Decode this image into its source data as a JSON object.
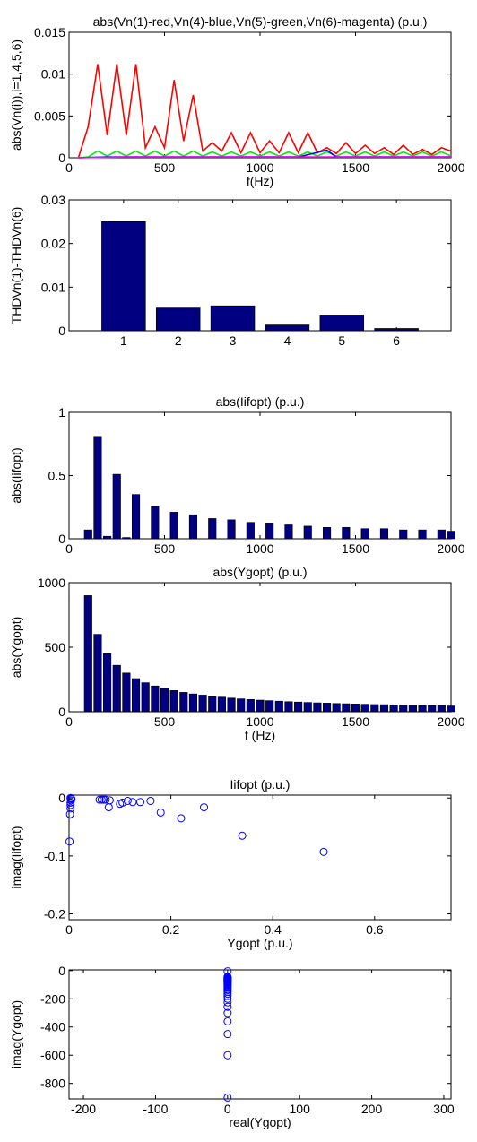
{
  "chart_data": [
    {
      "type": "line",
      "title": "abs(Vn(1)-red,Vn(4)-blue,Vn(5)-green,Vn(6)-magenta) (p.u.)",
      "xlabel": "f(Hz)",
      "ylabel": "abs(Vn(i)),i=1,4,5,6)",
      "xlim": [
        0,
        2000
      ],
      "ylim": [
        0,
        0.015
      ],
      "xticks": [
        0,
        500,
        1000,
        1500,
        2000
      ],
      "xtick_labels": [
        "0",
        "500",
        "1000",
        "1500",
        "2000"
      ],
      "yticks": [
        0,
        0.005,
        0.01,
        0.015
      ],
      "ytick_labels": [
        "0",
        "0.005",
        "0.01",
        "0.015"
      ],
      "grid": false,
      "series": [
        {
          "color": "#ff0000",
          "x": [
            50,
            100,
            150,
            200,
            250,
            300,
            350,
            400,
            450,
            500,
            550,
            600,
            650,
            700,
            750,
            800,
            850,
            900,
            950,
            1000,
            1050,
            1100,
            1150,
            1200,
            1250,
            1300,
            1350,
            1400,
            1450,
            1500,
            1550,
            1600,
            1650,
            1700,
            1750,
            1800,
            1850,
            1900,
            1950,
            2000
          ],
          "y": [
            0.0001,
            0.0037,
            0.0112,
            0.0027,
            0.0112,
            0.0027,
            0.0112,
            0.0012,
            0.0037,
            0.0012,
            0.0093,
            0.002,
            0.0075,
            0.0008,
            0.0018,
            0.0008,
            0.003,
            0.0006,
            0.003,
            0.0006,
            0.002,
            0.0006,
            0.003,
            0.0006,
            0.003,
            0.0006,
            0.0012,
            0.0005,
            0.0018,
            0.0005,
            0.0015,
            0.0005,
            0.0012,
            0.0004,
            0.0015,
            0.0004,
            0.001,
            0.0004,
            0.0012,
            0.0008
          ]
        },
        {
          "color": "#00ee00",
          "x": [
            50,
            100,
            150,
            200,
            250,
            300,
            350,
            400,
            450,
            500,
            550,
            600,
            650,
            700,
            750,
            800,
            850,
            900,
            950,
            1000,
            1050,
            1100,
            1150,
            1200,
            1250,
            1300,
            1350,
            1400,
            1450,
            1500,
            1550,
            1600,
            1650,
            1700,
            1750,
            1800,
            1850,
            1900,
            1950,
            2000
          ],
          "y": [
            0,
            0.0001,
            0.0008,
            0.0002,
            0.0008,
            0.0002,
            0.0008,
            0.0002,
            0.0008,
            0.0002,
            0.0008,
            0.0002,
            0.0008,
            0.0002,
            0.0007,
            0.0002,
            0.0007,
            0.0002,
            0.0007,
            0.0002,
            0.0007,
            0.0002,
            0.0007,
            0.0002,
            0.0007,
            0.0002,
            0.0007,
            0.0002,
            0.0007,
            0.0002,
            0.0007,
            0.0002,
            0.0007,
            0.0002,
            0.0007,
            0.0002,
            0.0007,
            0.0002,
            0.0007,
            0.0002
          ]
        },
        {
          "color": "#0000ff",
          "x": [
            50,
            200,
            400,
            600,
            800,
            1000,
            1200,
            1350,
            1400,
            1600,
            1800,
            2000
          ],
          "y": [
            0,
            0.0001,
            0.0001,
            0.0001,
            0.0001,
            0.0001,
            0.0001,
            0.0009,
            0.0001,
            0.0001,
            0.0001,
            0.0001
          ]
        },
        {
          "color": "#ff00ff",
          "x": [
            50,
            300,
            600,
            900,
            1200,
            1500,
            1800,
            2000
          ],
          "y": [
            0,
            0.0001,
            0.0001,
            0.0001,
            0.0001,
            0.0001,
            0.0001,
            0.0001
          ]
        }
      ]
    },
    {
      "type": "bar",
      "title": "",
      "xlabel": "",
      "ylabel": "THDVn(1)-THDVn(6)",
      "categories": [
        "1",
        "2",
        "3",
        "4",
        "5",
        "6"
      ],
      "values": [
        0.025,
        0.0052,
        0.0057,
        0.0013,
        0.0036,
        0.0005
      ],
      "xlim": [
        0,
        7
      ],
      "ylim": [
        0,
        0.03
      ],
      "yticks": [
        0,
        0.01,
        0.02,
        0.03
      ],
      "ytick_labels": [
        "0",
        "0.01",
        "0.02",
        "0.03"
      ],
      "color": "#000080",
      "grid": false
    },
    {
      "type": "bar",
      "title": "abs(Iifopt) (p.u.)",
      "xlabel": "",
      "ylabel": "abs(Iifopt)",
      "xlim": [
        0,
        2000
      ],
      "ylim": [
        0,
        1
      ],
      "xticks": [
        0,
        500,
        1000,
        1500,
        2000
      ],
      "xtick_labels": [
        "0",
        "500",
        "1000",
        "1500",
        "2000"
      ],
      "yticks": [
        0,
        0.5,
        1
      ],
      "ytick_labels": [
        "0",
        "0.5",
        "1"
      ],
      "color": "#000080",
      "x": [
        100,
        150,
        200,
        250,
        300,
        350,
        400,
        450,
        500,
        550,
        600,
        650,
        700,
        750,
        800,
        850,
        900,
        950,
        1000,
        1050,
        1100,
        1150,
        1200,
        1250,
        1300,
        1350,
        1400,
        1450,
        1500,
        1550,
        1600,
        1650,
        1700,
        1750,
        1800,
        1850,
        1900,
        1950,
        2000
      ],
      "values": [
        0.07,
        0.81,
        0.02,
        0.51,
        0.01,
        0.35,
        0,
        0.26,
        0,
        0.21,
        0,
        0.19,
        0,
        0.16,
        0,
        0.15,
        0,
        0.13,
        0,
        0.12,
        0,
        0.11,
        0,
        0.1,
        0,
        0.09,
        0,
        0.09,
        0,
        0.08,
        0,
        0.08,
        0,
        0.07,
        0,
        0.07,
        0,
        0.07,
        0.06
      ],
      "grid": false
    },
    {
      "type": "bar",
      "title": "abs(Ygopt) (p.u.)",
      "xlabel": "f (Hz)",
      "ylabel": "abs(Ygopt)",
      "xlim": [
        0,
        2000
      ],
      "ylim": [
        0,
        1000
      ],
      "xticks": [
        0,
        500,
        1000,
        1500,
        2000
      ],
      "xtick_labels": [
        "0",
        "500",
        "1000",
        "1500",
        "2000"
      ],
      "yticks": [
        0,
        500,
        1000
      ],
      "ytick_labels": [
        "0",
        "500",
        "1000"
      ],
      "color": "#000080",
      "x": [
        100,
        150,
        200,
        250,
        300,
        350,
        400,
        450,
        500,
        550,
        600,
        650,
        700,
        750,
        800,
        850,
        900,
        950,
        1000,
        1050,
        1100,
        1150,
        1200,
        1250,
        1300,
        1350,
        1400,
        1450,
        1500,
        1550,
        1600,
        1650,
        1700,
        1750,
        1800,
        1850,
        1900,
        1950,
        2000
      ],
      "values": [
        900,
        600,
        450,
        360,
        300,
        257,
        225,
        200,
        180,
        164,
        150,
        138,
        129,
        120,
        113,
        106,
        100,
        95,
        90,
        86,
        82,
        78,
        75,
        72,
        69,
        67,
        64,
        62,
        60,
        58,
        56,
        55,
        53,
        51,
        50,
        49,
        47,
        46,
        45
      ],
      "grid": false
    },
    {
      "type": "scatter",
      "title": "Iifopt (p.u.)",
      "xlabel": "Ygopt (p.u.)",
      "ylabel": "imag(Iifopt)",
      "xlim": [
        0,
        0.75
      ],
      "ylim": [
        -0.21,
        0.005
      ],
      "xticks": [
        0,
        0.2,
        0.4,
        0.6
      ],
      "xtick_labels": [
        "0",
        "0.2",
        "0.4",
        "0.6"
      ],
      "yticks": [
        0,
        -0.1,
        -0.2
      ],
      "ytick_labels": [
        "0",
        "-0.1",
        "-0.2"
      ],
      "color": "#0000ff",
      "marker": "circle-open",
      "points": [
        [
          0.5,
          -0.093
        ],
        [
          0.34,
          -0.065
        ],
        [
          0.265,
          -0.016
        ],
        [
          0.22,
          -0.035
        ],
        [
          0.18,
          -0.025
        ],
        [
          0.16,
          -0.005
        ],
        [
          0.14,
          -0.007
        ],
        [
          0.125,
          -0.007
        ],
        [
          0.115,
          -0.005
        ],
        [
          0.105,
          -0.008
        ],
        [
          0.1,
          -0.01
        ],
        [
          0.08,
          -0.004
        ],
        [
          0.078,
          -0.016
        ],
        [
          0.072,
          -0.003
        ],
        [
          0.068,
          -0.003
        ],
        [
          0.064,
          -0.003
        ],
        [
          0.06,
          -0.003
        ],
        [
          0.005,
          -0.002
        ],
        [
          0.004,
          -0.004
        ],
        [
          0.003,
          -0.008
        ],
        [
          0.003,
          -0.012
        ],
        [
          0.003,
          -0.018
        ],
        [
          0.002,
          -0.028
        ],
        [
          0.001,
          -0.075
        ],
        [
          0.003,
          0
        ],
        [
          0.004,
          -0.001
        ]
      ],
      "grid": false
    },
    {
      "type": "scatter",
      "title": "",
      "xlabel": "real(Ygopt)",
      "ylabel": "imag(Ygopt)",
      "xlim": [
        -220,
        310
      ],
      "ylim": [
        -910,
        5
      ],
      "xticks": [
        -200,
        -100,
        0,
        100,
        200,
        300
      ],
      "xtick_labels": [
        "-200",
        "-100",
        "0",
        "100",
        "200",
        "300"
      ],
      "yticks": [
        0,
        -200,
        -400,
        -600,
        -800
      ],
      "ytick_labels": [
        "0",
        "-200",
        "-400",
        "-600",
        "-800"
      ],
      "color": "#0000ff",
      "marker": "circle-open",
      "points": [
        [
          0,
          -900
        ],
        [
          0,
          -600
        ],
        [
          0,
          -450
        ],
        [
          0,
          -360
        ],
        [
          0,
          -300
        ],
        [
          0,
          -257
        ],
        [
          0,
          -225
        ],
        [
          0,
          -200
        ],
        [
          0,
          -180
        ],
        [
          0,
          -164
        ],
        [
          0,
          -150
        ],
        [
          0,
          -138
        ],
        [
          0,
          -129
        ],
        [
          0,
          -120
        ],
        [
          0,
          -113
        ],
        [
          0,
          -106
        ],
        [
          0,
          -100
        ],
        [
          0,
          -95
        ],
        [
          0,
          -90
        ],
        [
          0,
          -86
        ],
        [
          0,
          -82
        ],
        [
          0,
          -78
        ],
        [
          0,
          -75
        ],
        [
          0,
          -72
        ],
        [
          0,
          -69
        ],
        [
          0,
          -67
        ],
        [
          0,
          -64
        ],
        [
          0,
          -62
        ],
        [
          0,
          -60
        ],
        [
          0,
          -56
        ],
        [
          0,
          -53
        ],
        [
          0,
          -50
        ],
        [
          0,
          -47
        ],
        [
          0,
          -45
        ],
        [
          0,
          -5
        ]
      ],
      "grid": false
    }
  ]
}
